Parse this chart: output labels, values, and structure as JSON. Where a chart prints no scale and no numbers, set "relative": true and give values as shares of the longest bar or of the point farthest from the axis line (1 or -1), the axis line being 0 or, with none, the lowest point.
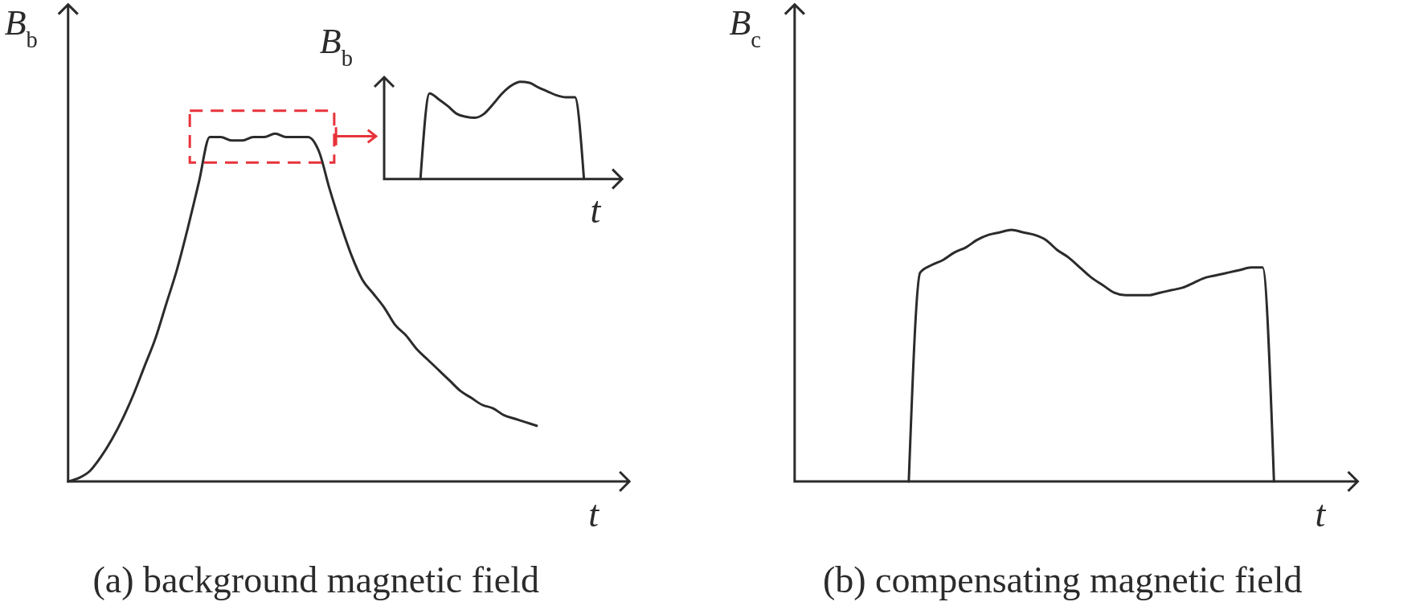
{
  "chart_data": [
    {
      "type": "line",
      "title": "(a) background magnetic field",
      "xlabel": "t",
      "ylabel": "B$_{b}$",
      "relative": true,
      "categories": [
        null,
        null,
        null,
        null,
        null,
        null,
        null,
        null,
        null,
        null,
        null,
        null,
        null,
        null,
        null,
        null,
        null,
        null,
        null,
        null,
        null,
        null,
        null,
        null,
        null,
        null,
        null,
        null,
        null,
        null,
        null,
        null,
        null,
        null,
        null,
        null,
        null,
        null,
        null,
        null,
        null,
        null,
        null,
        null,
        null,
        null,
        null,
        null,
        null,
        null,
        null,
        null
      ],
      "series": [
        {
          "color": "#2b2b2b",
          "values": [
            0,
            0.01,
            0.03,
            0.07,
            0.12,
            0.18,
            0.25,
            0.33,
            0.41,
            0.51,
            0.61,
            0.73,
            0.86,
            0.99,
            0.99,
            0.98,
            0.98,
            0.99,
            0.99,
            1,
            0.99,
            0.99,
            0.99,
            0.95,
            0.84,
            0.74,
            0.65,
            0.58,
            0.54,
            0.5,
            0.45,
            0.42,
            0.38,
            0.35,
            0.32,
            0.29,
            0.26,
            0.24,
            0.22,
            0.21,
            0.19,
            0.18,
            0.17,
            0.16,
            null,
            null,
            null,
            null,
            null,
            null,
            null,
            null
          ]
        }
      ]
    },
    {
      "type": "line",
      "xlabel": "t",
      "ylabel": "B$_{b}$",
      "relative": true,
      "categories": [
        null,
        null,
        null,
        null,
        null,
        null,
        null,
        null,
        null,
        null,
        null,
        null,
        null,
        null,
        null,
        null,
        null,
        null,
        null,
        null,
        null,
        null,
        null,
        null,
        null,
        null,
        null
      ],
      "series": [
        {
          "color": "#2b2b2b",
          "values": [
            null,
            null,
            null,
            null,
            0,
            0.88,
            0.82,
            0.75,
            0.67,
            0.64,
            0.63,
            0.67,
            0.77,
            0.88,
            0.96,
            1,
            0.99,
            0.94,
            0.9,
            0.86,
            0.84,
            0.84,
            0,
            null,
            null,
            null,
            null
          ]
        }
      ]
    },
    {
      "type": "line",
      "title": "(b) compensating magnetic field",
      "xlabel": "t",
      "ylabel": "B$_{c}$",
      "relative": true,
      "categories": [
        null,
        null,
        null,
        null,
        null,
        null,
        null,
        null,
        null,
        null,
        null,
        null,
        null,
        null,
        null,
        null,
        null,
        null,
        null,
        null,
        null,
        null,
        null,
        null,
        null,
        null,
        null,
        null,
        null,
        null,
        null,
        null,
        null,
        null,
        null,
        null,
        null,
        null,
        null,
        null,
        null,
        null,
        null,
        null,
        null,
        null,
        null,
        null,
        null
      ],
      "series": [
        {
          "color": "#2b2b2b",
          "values": [
            null,
            null,
            null,
            null,
            null,
            null,
            null,
            null,
            null,
            null,
            0,
            0.83,
            0.86,
            0.88,
            0.91,
            0.93,
            0.96,
            0.98,
            0.99,
            1,
            0.99,
            0.98,
            0.96,
            0.92,
            0.89,
            0.85,
            0.81,
            0.78,
            0.75,
            0.74,
            0.74,
            0.74,
            0.75,
            0.76,
            0.77,
            0.79,
            0.81,
            0.82,
            0.83,
            0.84,
            0.85,
            0.85,
            0,
            null,
            null,
            null,
            null,
            null,
            null
          ]
        }
      ]
    }
  ]
}
